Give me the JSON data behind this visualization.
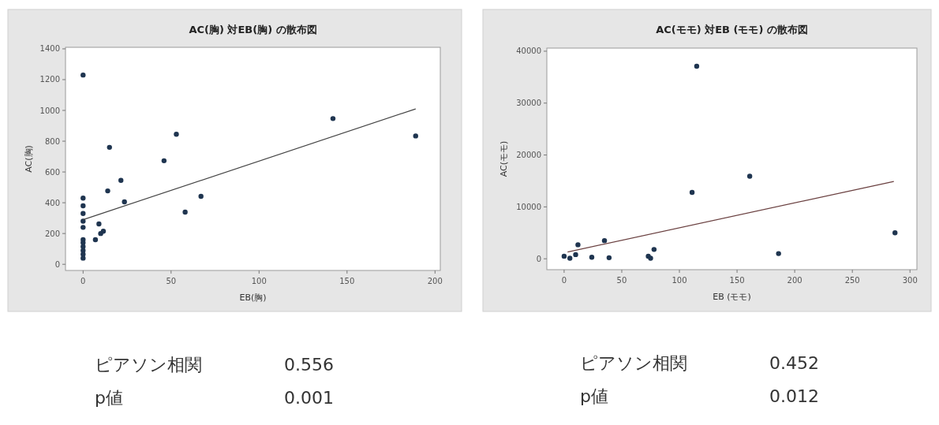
{
  "chart_data": [
    {
      "type": "scatter",
      "title": "AC(胸) 対EB(胸) の散布図",
      "xlabel": "EB(胸)",
      "ylabel": "AC(胸)",
      "xlim": [
        -10,
        203
      ],
      "ylim": [
        -40,
        1410
      ],
      "xticks": [
        0,
        50,
        100,
        150,
        200
      ],
      "yticks": [
        0,
        200,
        400,
        600,
        800,
        1000,
        1200,
        1400
      ],
      "series": [
        {
          "marker": "circle",
          "color": "#1f3550",
          "x": [
            0,
            15,
            53,
            46,
            21.5,
            14,
            23.5,
            67,
            58,
            9,
            11.5,
            10,
            7,
            142,
            189,
            0,
            0,
            0,
            0,
            0,
            0,
            0,
            0,
            0,
            0,
            0
          ],
          "values": [
            1230,
            760,
            845,
            673,
            545,
            477,
            406,
            442,
            339,
            262,
            215,
            200,
            160,
            947,
            834,
            430,
            380,
            280,
            240,
            160,
            140,
            115,
            90,
            65,
            40,
            330
          ]
        },
        {
          "type": "line",
          "marker": "none",
          "color": "#444444",
          "x": [
            0,
            189
          ],
          "values": [
            290,
            1010
          ]
        }
      ],
      "annotations": [
        "ピアソン相関",
        "0.556",
        "p値",
        "0.001"
      ]
    },
    {
      "type": "scatter",
      "title": "AC(モモ) 対EB (モモ) の散布図",
      "xlabel": "EB (モモ)",
      "ylabel": "AC(モモ)",
      "xlim": [
        -15,
        306
      ],
      "ylim": [
        -2100,
        40600
      ],
      "xticks": [
        0,
        50,
        100,
        150,
        200,
        250,
        300
      ],
      "yticks": [
        0,
        10000,
        20000,
        30000,
        40000
      ],
      "series": [
        {
          "marker": "circle",
          "color": "#1f3550",
          "x": [
            115,
            111,
            35,
            12,
            78,
            73,
            75,
            39,
            24,
            161,
            287,
            186,
            0,
            10,
            5
          ],
          "values": [
            37100,
            12800,
            3500,
            2700,
            1800,
            500,
            100,
            200,
            300,
            15900,
            5000,
            1000,
            500,
            800,
            100
          ]
        },
        {
          "type": "line",
          "marker": "none",
          "color": "#6a4040",
          "x": [
            3,
            286
          ],
          "values": [
            1300,
            14900
          ]
        }
      ],
      "annotations": [
        "ピアソン相関",
        "0.452",
        "p値",
        "0.012"
      ]
    }
  ]
}
